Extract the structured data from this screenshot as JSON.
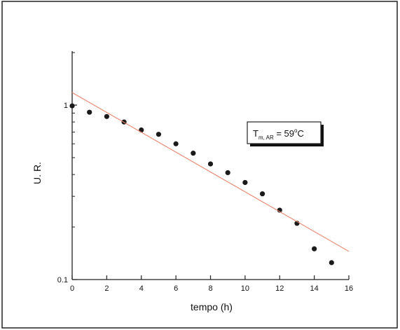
{
  "chart_data": {
    "type": "scatter",
    "xlabel": "tempo (h)",
    "ylabel": "U. R.",
    "xlim": [
      0,
      16
    ],
    "ylim": [
      0.1,
      2
    ],
    "y_scale": "log",
    "x_ticks": [
      "0",
      "2",
      "4",
      "6",
      "8",
      "10",
      "12",
      "14",
      "16"
    ],
    "y_ticks": [
      {
        "value": 1,
        "label": "1"
      },
      {
        "value": 0.1,
        "label": "0.1"
      }
    ],
    "grid": false,
    "series": [
      {
        "type": "scatter",
        "color": "#1a1a1a",
        "x": [
          0,
          1,
          2,
          3,
          4,
          5,
          6,
          7,
          8,
          9,
          10,
          11,
          12,
          13,
          14,
          15
        ],
        "y": [
          0.99,
          0.91,
          0.86,
          0.8,
          0.72,
          0.68,
          0.6,
          0.53,
          0.46,
          0.41,
          0.36,
          0.31,
          0.25,
          0.21,
          0.15,
          0.125
        ]
      },
      {
        "type": "line",
        "color": "#e8836a",
        "x": [
          0,
          16
        ],
        "y": [
          1.18,
          0.145
        ]
      }
    ],
    "annotation": {
      "main": "T",
      "subscript": "m, AR",
      "equals": " = 59",
      "superscript": "o",
      "unit": "C"
    }
  }
}
